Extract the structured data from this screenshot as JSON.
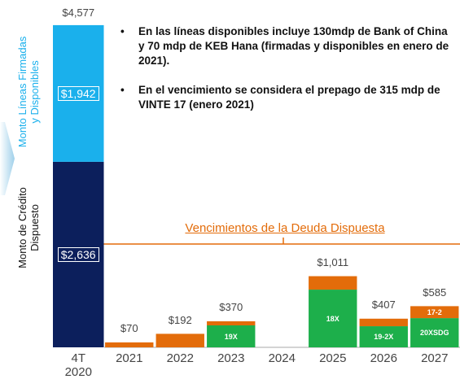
{
  "chart_data": {
    "type": "stacked_bar",
    "categories": [
      "4T\n2020",
      "2021",
      "2022",
      "2023",
      "2024",
      "2025",
      "2026",
      "2027"
    ],
    "series": [
      {
        "name": "Monto de Crédito\nDispuesto",
        "color": "#0c1f5c",
        "values": [
          2636,
          null,
          null,
          null,
          null,
          null,
          null,
          null
        ],
        "value_labels": [
          "$2,636",
          null,
          null,
          null,
          null,
          null,
          null,
          null
        ]
      },
      {
        "name": "Monto Líneas Firmadas\ny Disponibles",
        "color": "#1ab0ec",
        "values": [
          1942,
          null,
          null,
          null,
          null,
          null,
          null,
          null
        ],
        "value_labels": [
          "$1,942",
          null,
          null,
          null,
          null,
          null,
          null,
          null
        ]
      },
      {
        "color": "#1daf4b",
        "values": [
          null,
          null,
          null,
          312,
          null,
          820,
          300,
          415
        ],
        "labels": [
          null,
          null,
          null,
          "19X",
          null,
          "18X",
          "19-2X",
          "20XSDG"
        ]
      },
      {
        "color": "#e36c0a",
        "values": [
          null,
          70,
          192,
          58,
          null,
          191,
          107,
          170
        ],
        "labels": [
          null,
          null,
          null,
          null,
          null,
          null,
          null,
          "17-2"
        ]
      }
    ],
    "totals": [
      4577,
      70,
      192,
      370,
      null,
      1011,
      407,
      585
    ],
    "total_labels": [
      "$4,577",
      "$70",
      "$192",
      "$370",
      null,
      "$1,011",
      "$407",
      "$585"
    ],
    "ylim": [
      0,
      4600
    ],
    "annotation": "Vencimientos de la Deuda Dispuesta",
    "notes": [
      "En las líneas disponibles incluye 130mdp de Bank of China y 70 mdp de KEB Hana (firmadas y disponibles en enero de 2021).",
      "En el vencimiento se considera el prepago de 315 mdp de VINTE 17 (enero 2021)"
    ]
  }
}
